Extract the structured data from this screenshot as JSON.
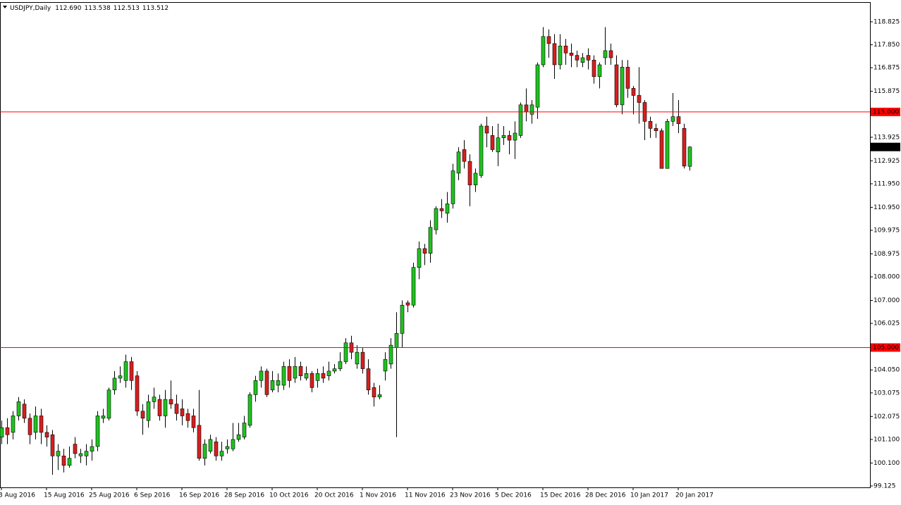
{
  "chart_data": {
    "type": "candlestick",
    "symbol": "USDJPY,Daily",
    "header_values": [
      "112.690",
      "113.538",
      "112.513",
      "113.512"
    ],
    "up_color": "#1fc21f",
    "down_color": "#d81e1e",
    "wick_color": "#000000",
    "ylim": [
      99.065,
      119.66
    ],
    "yticks": [
      {
        "value": 99.125,
        "label": "99.125"
      },
      {
        "value": 100.1,
        "label": "100.100"
      },
      {
        "value": 101.1,
        "label": "101.100"
      },
      {
        "value": 102.075,
        "label": "102.075"
      },
      {
        "value": 103.075,
        "label": "103.075"
      },
      {
        "value": 104.05,
        "label": "104.050"
      },
      {
        "value": 106.025,
        "label": "106.025"
      },
      {
        "value": 107.0,
        "label": "107.000"
      },
      {
        "value": 108.0,
        "label": "108.000"
      },
      {
        "value": 108.975,
        "label": "108.975"
      },
      {
        "value": 109.975,
        "label": "109.975"
      },
      {
        "value": 110.95,
        "label": "110.950"
      },
      {
        "value": 111.95,
        "label": "111.950"
      },
      {
        "value": 112.925,
        "label": "112.925"
      },
      {
        "value": 113.925,
        "label": "113.925"
      },
      {
        "value": 115.875,
        "label": "115.875"
      },
      {
        "value": 116.875,
        "label": "116.875"
      },
      {
        "value": 117.85,
        "label": "117.850"
      },
      {
        "value": 118.825,
        "label": "118.825"
      }
    ],
    "hlines": [
      {
        "value": 115,
        "label": "115.000",
        "color": "#ff0000"
      },
      {
        "value": 105,
        "label": "105.000",
        "color": "#ff0000"
      }
    ],
    "last_price": {
      "value": 113.512,
      "label": "113.512"
    },
    "categories": [
      "3 Aug 2016",
      null,
      null,
      null,
      null,
      null,
      null,
      null,
      "15 Aug 2016",
      null,
      null,
      null,
      null,
      null,
      null,
      null,
      "25 Aug 2016",
      null,
      null,
      null,
      null,
      null,
      null,
      null,
      "6 Sep 2016",
      null,
      null,
      null,
      null,
      null,
      null,
      null,
      "16 Sep 2016",
      null,
      null,
      null,
      null,
      null,
      null,
      null,
      "28 Sep 2016",
      null,
      null,
      null,
      null,
      null,
      null,
      null,
      "10 Oct 2016",
      null,
      null,
      null,
      null,
      null,
      null,
      null,
      "20 Oct 2016",
      null,
      null,
      null,
      null,
      null,
      null,
      null,
      "1 Nov 2016",
      null,
      null,
      null,
      null,
      null,
      null,
      null,
      "11 Nov 2016",
      null,
      null,
      null,
      null,
      null,
      null,
      null,
      "23 Nov 2016",
      null,
      null,
      null,
      null,
      null,
      null,
      null,
      "5 Dec 2016",
      null,
      null,
      null,
      null,
      null,
      null,
      null,
      "15 Dec 2016",
      null,
      null,
      null,
      null,
      null,
      null,
      null,
      "28 Dec 2016",
      null,
      null,
      null,
      null,
      null,
      null,
      null,
      "10 Jan 2017",
      null,
      null,
      null,
      null,
      null,
      null,
      null,
      "20 Jan 2017",
      null,
      null
    ],
    "open": [
      101.2,
      101.6,
      101.4,
      102.1,
      102.6,
      102.0,
      101.4,
      102.1,
      101.4,
      101.3,
      100.4,
      100.4,
      100.0,
      100.9,
      100.4,
      100.4,
      100.6,
      100.8,
      102.0,
      102.0,
      103.2,
      103.7,
      103.6,
      104.4,
      103.8,
      102.3,
      101.9,
      102.7,
      102.8,
      102.1,
      102.8,
      102.6,
      102.4,
      102.2,
      102.1,
      101.7,
      100.3,
      100.6,
      101.0,
      100.4,
      100.7,
      100.7,
      101.1,
      101.2,
      101.7,
      103.0,
      103.6,
      104.0,
      103.2,
      103.4,
      103.4,
      104.2,
      103.7,
      104.2,
      103.7,
      103.9,
      103.6,
      103.9,
      103.8,
      104.0,
      104.1,
      104.4,
      105.2,
      104.3,
      104.8,
      104.1,
      103.3,
      102.9,
      104.0,
      104.3,
      105.0,
      105.6,
      106.9,
      106.8,
      108.4,
      109.2,
      109.0,
      110.0,
      110.9,
      110.7,
      111.1,
      112.4,
      113.4,
      112.9,
      111.9,
      112.3,
      114.4,
      114.0,
      113.3,
      113.9,
      114.0,
      113.8,
      114.0,
      115.3,
      114.9,
      115.2,
      117.0,
      118.2,
      117.9,
      117.0,
      117.8,
      117.5,
      117.4,
      117.1,
      117.4,
      117.2,
      116.5,
      117.3,
      117.6,
      117.0,
      115.3,
      116.9,
      116.0,
      115.7,
      115.4,
      114.6,
      114.3,
      114.2,
      112.6,
      114.6,
      114.8,
      114.3,
      112.69
    ],
    "high": [
      101.9,
      102.0,
      102.3,
      102.9,
      102.8,
      102.2,
      102.5,
      102.4,
      101.7,
      101.5,
      100.9,
      100.7,
      100.8,
      101.2,
      100.7,
      100.9,
      101.1,
      102.3,
      102.4,
      103.3,
      104.0,
      104.2,
      104.7,
      104.6,
      104.0,
      102.6,
      103.0,
      103.3,
      103.0,
      103.2,
      103.6,
      103.0,
      102.8,
      102.4,
      102.4,
      103.2,
      101.1,
      101.3,
      101.2,
      101.0,
      101.1,
      101.8,
      101.8,
      102.1,
      103.1,
      103.8,
      104.2,
      104.1,
      104.0,
      103.9,
      104.4,
      104.5,
      104.6,
      104.4,
      104.2,
      104.0,
      104.1,
      104.2,
      104.4,
      104.3,
      104.8,
      105.4,
      105.5,
      105.1,
      105.0,
      104.5,
      103.5,
      103.4,
      104.8,
      105.4,
      106.5,
      107.0,
      107.0,
      108.6,
      109.5,
      109.4,
      110.4,
      111.0,
      111.3,
      111.6,
      112.8,
      113.5,
      113.8,
      113.2,
      112.6,
      114.5,
      114.8,
      114.4,
      114.5,
      114.4,
      114.2,
      114.6,
      115.4,
      116.0,
      115.5,
      117.1,
      118.6,
      118.5,
      118.3,
      118.3,
      118.1,
      117.9,
      117.6,
      117.5,
      117.7,
      117.4,
      117.1,
      118.6,
      117.9,
      117.4,
      117.2,
      117.2,
      116.1,
      116.9,
      115.5,
      114.8,
      114.5,
      114.3,
      114.7,
      115.8,
      115.5,
      114.5,
      113.538
    ],
    "low": [
      100.9,
      100.9,
      101.1,
      101.9,
      101.8,
      100.9,
      101.1,
      100.9,
      100.8,
      99.6,
      99.8,
      99.7,
      99.9,
      100.3,
      100.1,
      100.0,
      100.2,
      100.6,
      101.8,
      101.9,
      103.0,
      103.5,
      103.3,
      103.2,
      102.1,
      101.3,
      101.6,
      102.4,
      101.9,
      101.6,
      102.4,
      101.9,
      101.7,
      101.6,
      101.4,
      100.2,
      100.0,
      100.5,
      100.2,
      100.2,
      100.5,
      100.6,
      101.0,
      101.1,
      101.6,
      102.7,
      103.3,
      102.9,
      103.1,
      103.1,
      103.2,
      103.3,
      103.5,
      103.6,
      103.6,
      103.1,
      103.3,
      103.5,
      103.6,
      103.9,
      104.0,
      104.3,
      104.5,
      104.1,
      103.9,
      103.0,
      102.5,
      102.8,
      103.6,
      104.1,
      101.2,
      105.0,
      106.5,
      106.7,
      107.9,
      108.5,
      108.6,
      109.8,
      110.5,
      110.3,
      110.9,
      112.1,
      112.6,
      111.0,
      111.6,
      112.2,
      113.5,
      113.3,
      112.7,
      113.6,
      113.2,
      113.0,
      113.9,
      114.6,
      114.5,
      114.7,
      116.9,
      117.3,
      116.4,
      116.8,
      117.0,
      116.9,
      116.9,
      116.9,
      116.8,
      116.2,
      116.0,
      117.0,
      117.0,
      115.2,
      114.9,
      115.6,
      114.9,
      114.5,
      113.8,
      113.9,
      113.9,
      112.6,
      112.6,
      114.4,
      114.1,
      112.6,
      112.513
    ],
    "close": [
      101.6,
      101.3,
      102.1,
      102.7,
      102.0,
      101.3,
      102.1,
      101.4,
      101.2,
      100.4,
      100.6,
      100.0,
      100.3,
      100.5,
      100.5,
      100.6,
      100.8,
      102.1,
      102.1,
      103.2,
      103.7,
      103.8,
      104.4,
      103.6,
      102.3,
      102.0,
      102.7,
      102.9,
      102.1,
      102.8,
      102.6,
      102.2,
      102.1,
      101.9,
      101.6,
      100.3,
      100.9,
      101.1,
      100.4,
      100.6,
      100.8,
      101.1,
      101.3,
      101.8,
      103.0,
      103.6,
      104.0,
      103.0,
      103.6,
      103.6,
      104.2,
      103.6,
      104.2,
      103.8,
      103.9,
      103.3,
      103.9,
      103.7,
      104.0,
      104.1,
      104.4,
      105.2,
      104.8,
      104.8,
      104.1,
      103.2,
      102.9,
      103.0,
      104.5,
      105.1,
      105.6,
      106.8,
      106.8,
      108.4,
      109.2,
      109.0,
      110.1,
      110.9,
      110.8,
      111.1,
      112.5,
      113.3,
      112.9,
      111.9,
      112.4,
      114.4,
      114.1,
      113.4,
      113.9,
      114.0,
      113.8,
      114.1,
      115.3,
      115.0,
      115.3,
      117.0,
      118.2,
      117.9,
      117.0,
      117.8,
      117.5,
      117.4,
      117.2,
      117.3,
      117.2,
      116.5,
      117.0,
      117.6,
      117.3,
      115.3,
      116.9,
      116.0,
      115.7,
      115.4,
      114.6,
      114.3,
      114.2,
      112.6,
      114.6,
      114.8,
      114.5,
      112.7,
      113.512
    ]
  }
}
